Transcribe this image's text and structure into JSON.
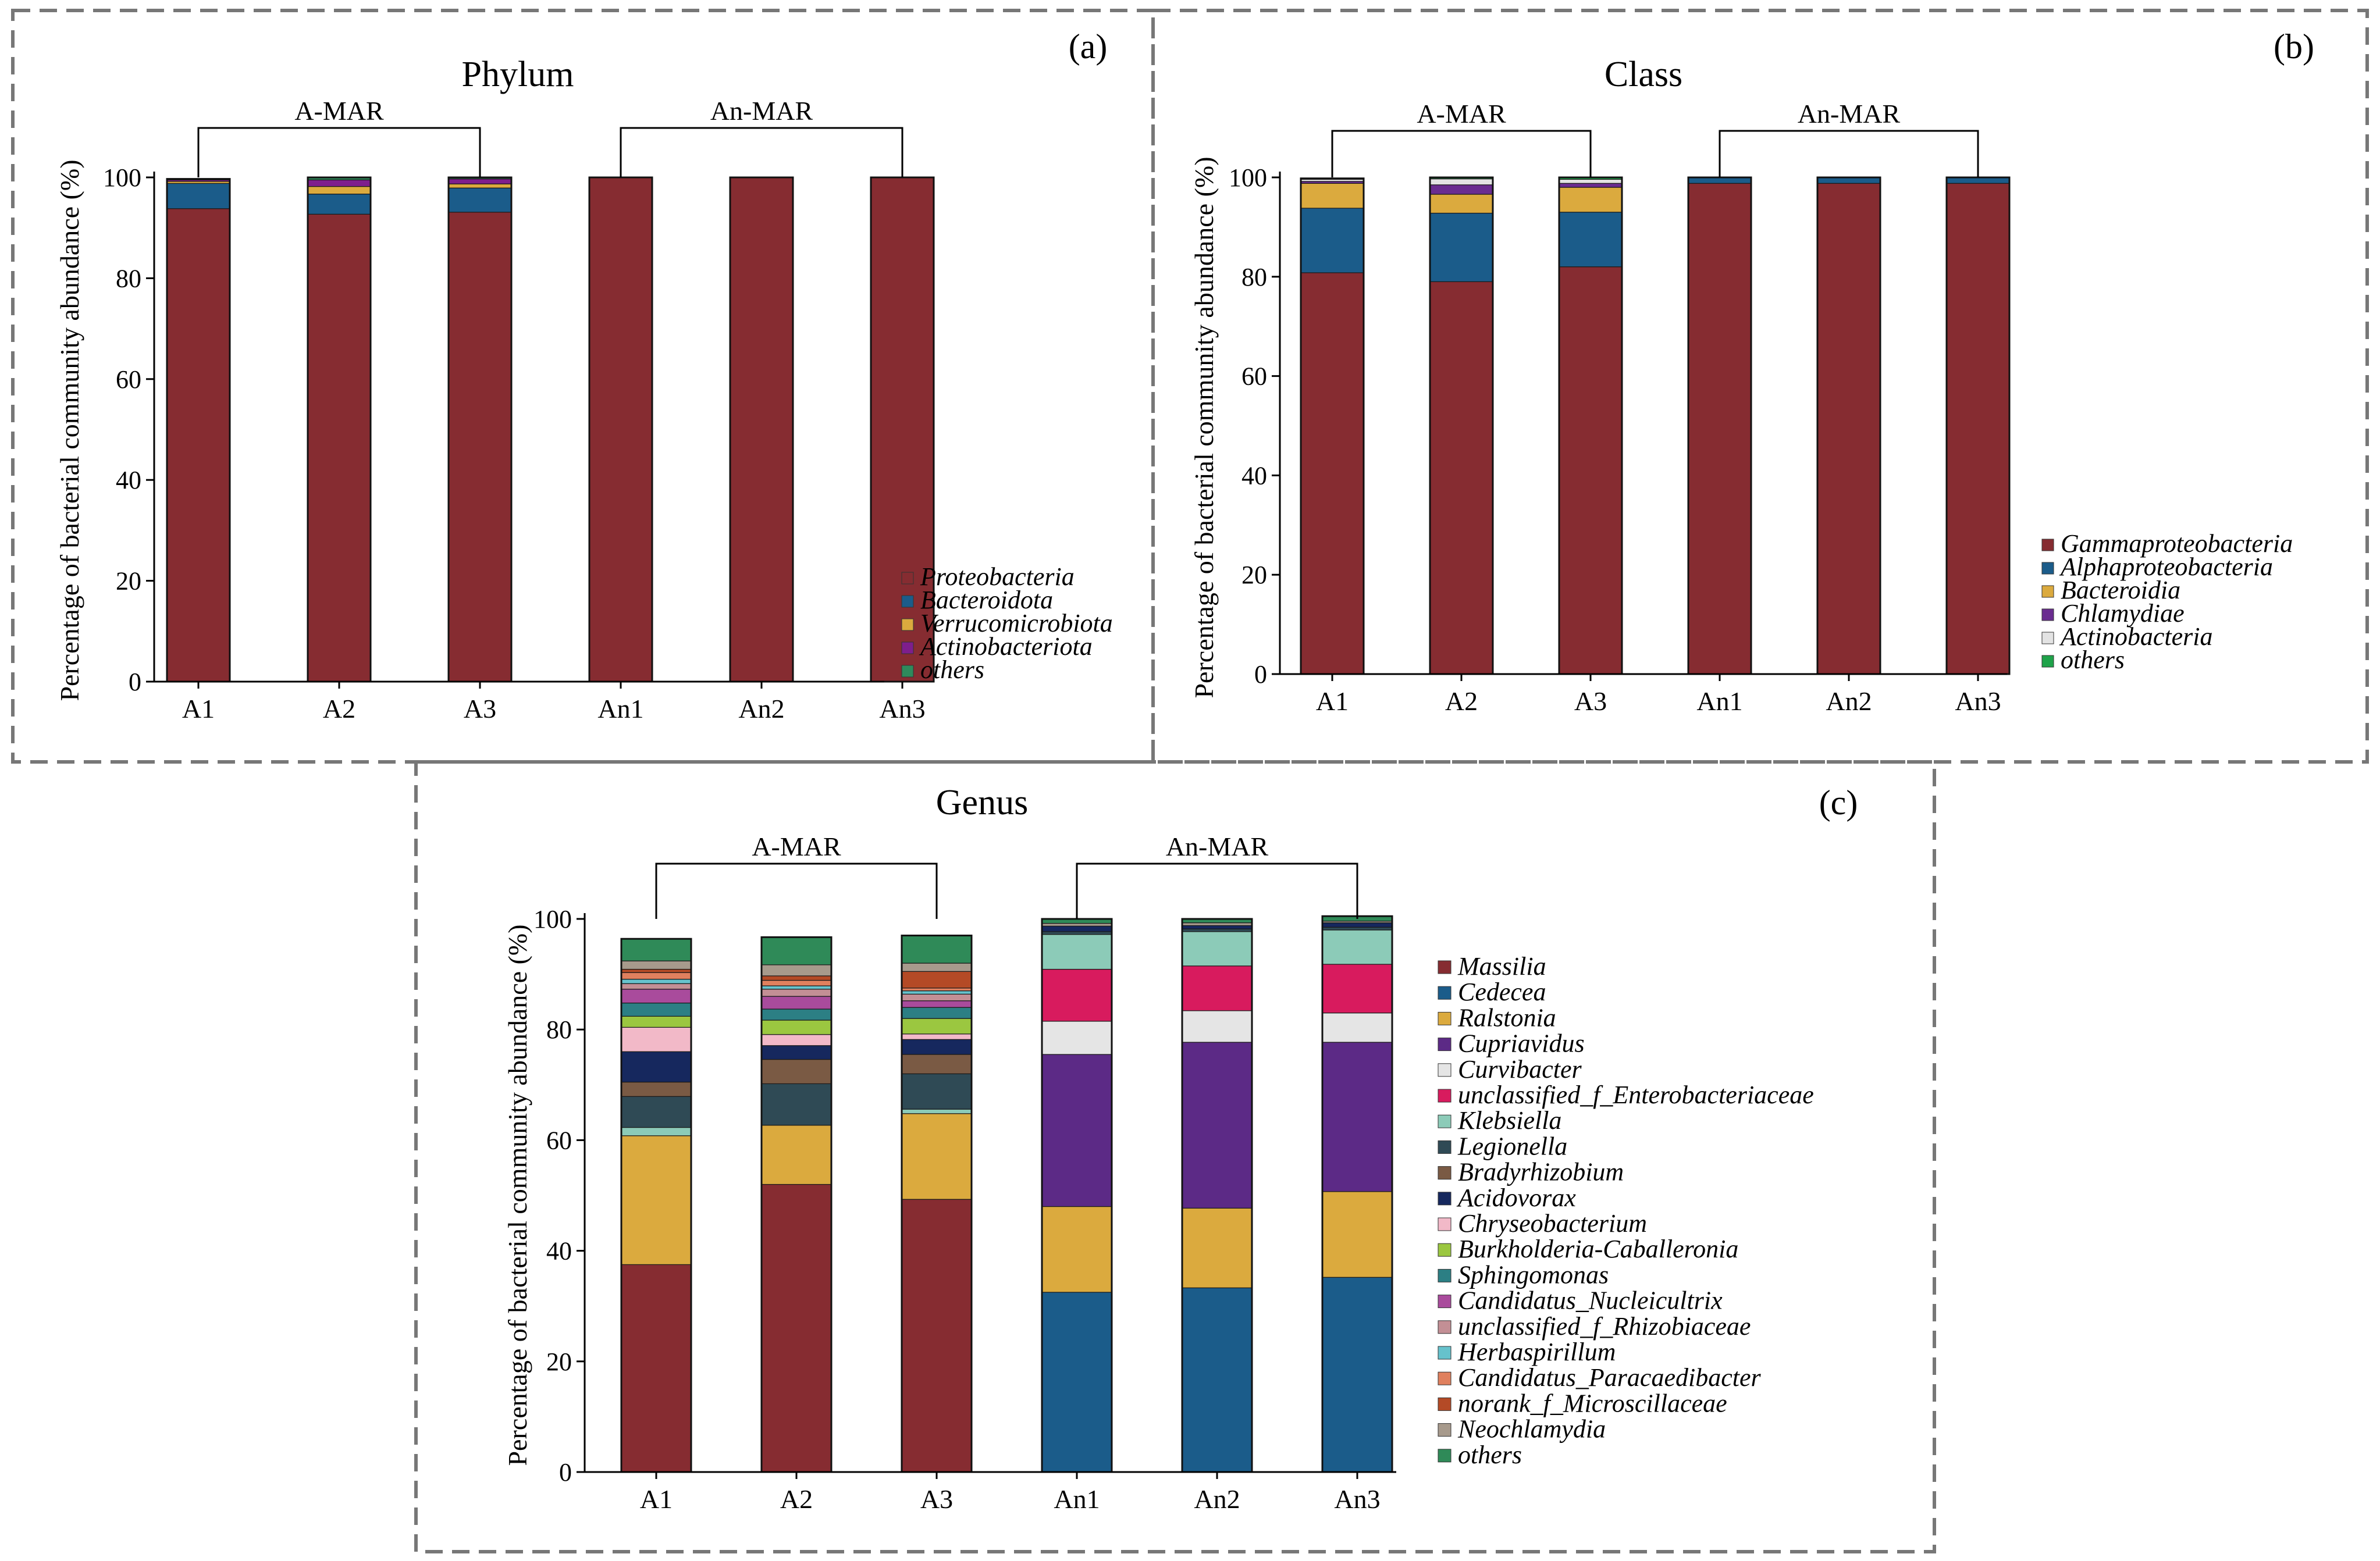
{
  "colors": {
    "Proteobacteria": "#862C31",
    "Bacteroidota": "#1B5C8A",
    "Verrucomicrobiota": "#DBAA3E",
    "Actinobacteriota": "#7E1E8C",
    "Gammaproteobacteria": "#862C31",
    "Alphaproteobacteria": "#1B5C8A",
    "Bacteroidia": "#DBAA3E",
    "Chlamydiae": "#6A2C90",
    "Actinobacteria": "#E3E3E3",
    "others_phylum": "#2F8A5C",
    "others_class": "#1FA34A",
    "Massilia": "#862C31",
    "Cedecea": "#1B5C8A",
    "Ralstonia": "#DBAA3E",
    "Cupriavidus": "#5C2A86",
    "Curvibacter": "#E5E5E5",
    "unclassified_f_Enterobacteriaceae": "#D81B5E",
    "Klebsiella": "#8CCBB8",
    "Legionella": "#2F4A55",
    "Bradyrhizobium": "#7A5A44",
    "Acidovorax": "#16285E",
    "Chryseobacterium": "#F2B9C8",
    "Burkholderia-Caballeronia": "#9BC740",
    "Sphingomonas": "#2C7F84",
    "Candidatus_Nucleicultrix": "#A94B9C",
    "unclassified_f_Rhizobiaceae": "#C38F95",
    "Herbaspirillum": "#66C2CC",
    "Candidatus_Paracaedibacter": "#E0805E",
    "norank_f_Microscillaceae": "#B44A26",
    "Neochlamydia": "#A79A8C",
    "others_genus": "#2F8A58"
  },
  "chart_data": [
    {
      "type": "bar",
      "stacked": true,
      "panel_label": "(a)",
      "title": "Phylum",
      "xlabel": "",
      "ylabel": "Percentage of bacterial community abundance (%)",
      "ylim": [
        0,
        100
      ],
      "yticks": [
        0,
        20,
        40,
        60,
        80,
        100
      ],
      "categories": [
        "A1",
        "A2",
        "A3",
        "An1",
        "An2",
        "An3"
      ],
      "groups": [
        {
          "label": "A-MAR",
          "from": 0,
          "to": 2
        },
        {
          "label": "An-MAR",
          "from": 3,
          "to": 5
        }
      ],
      "legend_position": "right-bottom",
      "series": [
        {
          "name": "Proteobacteria",
          "color_key": "Proteobacteria",
          "values": [
            93.8,
            92.7,
            93.1,
            99.9,
            99.9,
            99.9
          ]
        },
        {
          "name": "Bacteroidota",
          "color_key": "Bacteroidota",
          "values": [
            5.0,
            4.0,
            4.8,
            0.0,
            0.0,
            0.0
          ]
        },
        {
          "name": "Verrucomicrobiota",
          "color_key": "Verrucomicrobiota",
          "values": [
            0.4,
            1.5,
            0.8,
            0.0,
            0.0,
            0.0
          ]
        },
        {
          "name": "Actinobacteriota",
          "color_key": "Actinobacteriota",
          "values": [
            0.3,
            1.3,
            1.0,
            0.0,
            0.0,
            0.0
          ]
        },
        {
          "name": "others",
          "color_key": "others_phylum",
          "values": [
            0.2,
            0.5,
            0.3,
            0.1,
            0.1,
            0.1
          ]
        }
      ]
    },
    {
      "type": "bar",
      "stacked": true,
      "panel_label": "(b)",
      "title": "Class",
      "xlabel": "",
      "ylabel": "Percentage of bacterial community abundance (%)",
      "ylim": [
        0,
        100
      ],
      "yticks": [
        0,
        20,
        40,
        60,
        80,
        100
      ],
      "categories": [
        "A1",
        "A2",
        "A3",
        "An1",
        "An2",
        "An3"
      ],
      "groups": [
        {
          "label": "A-MAR",
          "from": 0,
          "to": 2
        },
        {
          "label": "An-MAR",
          "from": 3,
          "to": 5
        }
      ],
      "legend_position": "right-bottom",
      "series": [
        {
          "name": "Gammaproteobacteria",
          "color_key": "Gammaproteobacteria",
          "values": [
            80.8,
            79.0,
            82.0,
            98.8,
            98.8,
            98.8
          ]
        },
        {
          "name": "Alphaproteobacteria",
          "color_key": "Alphaproteobacteria",
          "values": [
            13.0,
            13.8,
            11.0,
            1.1,
            1.1,
            1.1
          ]
        },
        {
          "name": "Bacteroidia",
          "color_key": "Bacteroidia",
          "values": [
            5.0,
            3.8,
            5.0,
            0.0,
            0.0,
            0.0
          ]
        },
        {
          "name": "Chlamydiae",
          "color_key": "Chlamydiae",
          "values": [
            0.4,
            1.9,
            0.8,
            0.0,
            0.0,
            0.0
          ]
        },
        {
          "name": "Actinobacteria",
          "color_key": "Actinobacteria",
          "values": [
            0.4,
            1.2,
            0.8,
            0.0,
            0.0,
            0.0
          ]
        },
        {
          "name": "others",
          "color_key": "others_class",
          "values": [
            0.2,
            0.3,
            0.4,
            0.1,
            0.1,
            0.1
          ]
        }
      ]
    },
    {
      "type": "bar",
      "stacked": true,
      "panel_label": "(c)",
      "title": "Genus",
      "xlabel": "",
      "ylabel": "Percentage of bacterial community abundance (%)",
      "ylim": [
        0,
        100
      ],
      "yticks": [
        0,
        20,
        40,
        60,
        80,
        100
      ],
      "categories": [
        "A1",
        "A2",
        "A3",
        "An1",
        "An2",
        "An3"
      ],
      "groups": [
        {
          "label": "A-MAR",
          "from": 0,
          "to": 2
        },
        {
          "label": "An-MAR",
          "from": 3,
          "to": 5
        }
      ],
      "legend_position": "right-bottom",
      "series": [
        {
          "name": "Massilia",
          "color_key": "Massilia",
          "values": [
            37.5,
            52.0,
            49.3,
            0.0,
            0.0,
            0.0
          ]
        },
        {
          "name": "Cedecea",
          "color_key": "Cedecea",
          "values": [
            0.0,
            0.0,
            0.0,
            32.5,
            33.3,
            35.2
          ]
        },
        {
          "name": "Ralstonia",
          "color_key": "Ralstonia",
          "values": [
            23.3,
            10.7,
            15.5,
            15.5,
            14.4,
            15.5
          ]
        },
        {
          "name": "Cupriavidus",
          "color_key": "Cupriavidus",
          "values": [
            0.0,
            0.0,
            0.0,
            27.5,
            30.0,
            27.0
          ]
        },
        {
          "name": "Curvibacter",
          "color_key": "Curvibacter",
          "values": [
            0.0,
            0.0,
            0.0,
            6.0,
            5.7,
            5.3
          ]
        },
        {
          "name": "unclassified_f_Enterobacteriaceae",
          "color_key": "unclassified_f_Enterobacteriaceae",
          "values": [
            0.0,
            0.0,
            0.0,
            9.4,
            8.1,
            8.8
          ]
        },
        {
          "name": "Klebsiella",
          "color_key": "Klebsiella",
          "values": [
            1.5,
            0.0,
            0.8,
            6.3,
            6.2,
            6.2
          ]
        },
        {
          "name": "Legionella",
          "color_key": "Legionella",
          "values": [
            5.6,
            7.5,
            6.4,
            0.5,
            0.5,
            0.5
          ]
        },
        {
          "name": "Bradyrhizobium",
          "color_key": "Bradyrhizobium",
          "values": [
            2.6,
            4.4,
            3.5,
            0.0,
            0.0,
            0.0
          ]
        },
        {
          "name": "Acidovorax",
          "color_key": "Acidovorax",
          "values": [
            5.5,
            2.5,
            2.7,
            1.0,
            0.6,
            0.8
          ]
        },
        {
          "name": "Chryseobacterium",
          "color_key": "Chryseobacterium",
          "values": [
            4.4,
            2.0,
            1.0,
            0.0,
            0.0,
            0.0
          ]
        },
        {
          "name": "Burkholderia-Caballeronia",
          "color_key": "Burkholderia-Caballeronia",
          "values": [
            2.0,
            2.6,
            2.8,
            0.0,
            0.0,
            0.0
          ]
        },
        {
          "name": "Sphingomonas",
          "color_key": "Sphingomonas",
          "values": [
            2.4,
            2.0,
            2.0,
            0.0,
            0.0,
            0.0
          ]
        },
        {
          "name": "Candidatus_Nucleicultrix",
          "color_key": "Candidatus_Nucleicultrix",
          "values": [
            2.5,
            2.3,
            1.2,
            0.0,
            0.0,
            0.0
          ]
        },
        {
          "name": "unclassified_f_Rhizobiaceae",
          "color_key": "unclassified_f_Rhizobiaceae",
          "values": [
            1.0,
            1.3,
            1.2,
            0.0,
            0.0,
            0.0
          ]
        },
        {
          "name": "Herbaspirillum",
          "color_key": "Herbaspirillum",
          "values": [
            0.8,
            0.6,
            0.6,
            0.0,
            0.0,
            0.0
          ]
        },
        {
          "name": "Candidatus_Paracaedibacter",
          "color_key": "Candidatus_Paracaedibacter",
          "values": [
            1.2,
            1.0,
            0.5,
            0.0,
            0.0,
            0.0
          ]
        },
        {
          "name": "norank_f_Microscillaceae",
          "color_key": "norank_f_Microscillaceae",
          "values": [
            0.6,
            0.8,
            3.0,
            0.0,
            0.0,
            0.0
          ]
        },
        {
          "name": "Neochlamydia",
          "color_key": "Neochlamydia",
          "values": [
            1.5,
            2.0,
            1.5,
            0.5,
            0.5,
            0.3
          ]
        },
        {
          "name": "others",
          "color_key": "others_genus",
          "values": [
            4.0,
            5.0,
            5.0,
            0.8,
            0.7,
            0.9
          ]
        }
      ]
    }
  ]
}
